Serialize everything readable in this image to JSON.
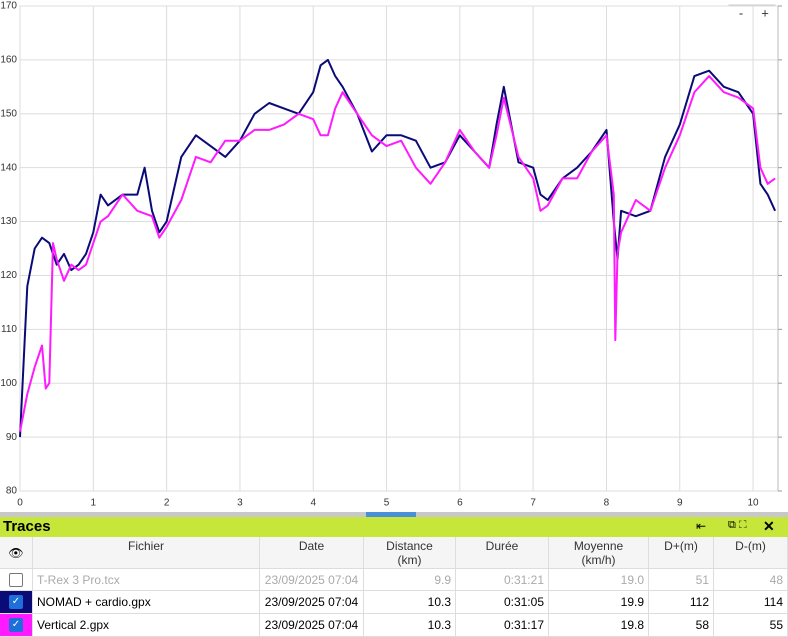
{
  "chart_data": {
    "type": "line",
    "zoom_buttons": [
      "-",
      "+"
    ],
    "xlim": [
      0,
      10.34
    ],
    "xticks": [
      0,
      1,
      2,
      3,
      4,
      5,
      6,
      7,
      8,
      9,
      10
    ],
    "ylim": [
      80,
      170
    ],
    "yticks": [
      80,
      90,
      100,
      110,
      120,
      130,
      140,
      150,
      160,
      170
    ],
    "grid": true,
    "series": [
      {
        "color": "#0b0b78",
        "x": [
          0,
          0.1,
          0.2,
          0.3,
          0.4,
          0.5,
          0.6,
          0.7,
          0.8,
          0.9,
          1.0,
          1.1,
          1.2,
          1.4,
          1.6,
          1.7,
          1.8,
          1.9,
          2.0,
          2.2,
          2.4,
          2.6,
          2.8,
          3.0,
          3.2,
          3.4,
          3.6,
          3.8,
          4.0,
          4.1,
          4.2,
          4.3,
          4.4,
          4.6,
          4.8,
          5.0,
          5.2,
          5.4,
          5.6,
          5.8,
          6.0,
          6.2,
          6.4,
          6.5,
          6.6,
          6.8,
          7.0,
          7.1,
          7.2,
          7.4,
          7.6,
          7.8,
          8.0,
          8.1,
          8.15,
          8.2,
          8.4,
          8.6,
          8.8,
          9.0,
          9.2,
          9.4,
          9.6,
          9.8,
          10.0,
          10.1,
          10.2,
          10.3
        ],
        "values": [
          90,
          118,
          125,
          127,
          126,
          122,
          124,
          121,
          122,
          124,
          128,
          135,
          133,
          135,
          135,
          140,
          132,
          128,
          130,
          142,
          146,
          144,
          142,
          145,
          150,
          152,
          151,
          150,
          154,
          159,
          160,
          157,
          155,
          150,
          143,
          146,
          146,
          145,
          140,
          141,
          146,
          143,
          140,
          148,
          155,
          141,
          140,
          135,
          134,
          138,
          140,
          143,
          147,
          130,
          123,
          132,
          131,
          132,
          142,
          148,
          157,
          158,
          155,
          154,
          150,
          137,
          135,
          132
        ]
      },
      {
        "color": "#ff1aff",
        "x": [
          0,
          0.1,
          0.2,
          0.3,
          0.35,
          0.4,
          0.45,
          0.5,
          0.6,
          0.7,
          0.8,
          0.9,
          1.0,
          1.1,
          1.2,
          1.4,
          1.6,
          1.8,
          1.9,
          2.0,
          2.2,
          2.4,
          2.6,
          2.8,
          3.0,
          3.2,
          3.4,
          3.6,
          3.8,
          4.0,
          4.1,
          4.2,
          4.3,
          4.4,
          4.6,
          4.8,
          5.0,
          5.2,
          5.4,
          5.6,
          5.8,
          6.0,
          6.2,
          6.4,
          6.5,
          6.6,
          6.8,
          7.0,
          7.1,
          7.2,
          7.4,
          7.6,
          7.8,
          8.0,
          8.1,
          8.12,
          8.15,
          8.2,
          8.4,
          8.6,
          8.8,
          9.0,
          9.2,
          9.4,
          9.6,
          9.8,
          10.0,
          10.1,
          10.2,
          10.3
        ],
        "values": [
          91,
          98,
          103,
          107,
          99,
          100,
          126,
          123,
          119,
          122,
          121,
          122,
          126,
          130,
          131,
          135,
          132,
          131,
          127,
          129,
          134,
          142,
          141,
          145,
          145,
          147,
          147,
          148,
          150,
          149,
          146,
          146,
          151,
          154,
          150,
          146,
          144,
          145,
          140,
          137,
          141,
          147,
          143,
          140,
          146,
          153,
          142,
          138,
          132,
          133,
          138,
          138,
          143,
          146,
          135,
          108,
          124,
          128,
          134,
          132,
          140,
          146,
          154,
          157,
          154,
          153,
          151,
          140,
          137,
          138
        ]
      }
    ]
  },
  "panel": {
    "title": "Traces",
    "columns": [
      {
        "label": "Fichier"
      },
      {
        "label": "Date"
      },
      {
        "label": "Distance",
        "unit": "(km)"
      },
      {
        "label": "Durée"
      },
      {
        "label": "Moyenne",
        "unit": "(km/h)"
      },
      {
        "label": "D+(m)"
      },
      {
        "label": "D-(m)"
      }
    ],
    "rows": [
      {
        "checked": false,
        "cells": [
          "T-Rex 3 Pro.tcx",
          "23/09/2025 07:04",
          "9.9",
          "0:31:21",
          "19.0",
          "51",
          "48"
        ]
      },
      {
        "checked": true,
        "color": "#0b0b78",
        "cells": [
          "NOMAD + cardio.gpx",
          "23/09/2025 07:04",
          "10.3",
          "0:31:05",
          "19.9",
          "112",
          "114"
        ]
      },
      {
        "checked": true,
        "color": "#ff1aff",
        "cells": [
          "Vertical 2.gpx",
          "23/09/2025 07:04",
          "10.3",
          "0:31:17",
          "19.8",
          "58",
          "55"
        ]
      }
    ]
  }
}
